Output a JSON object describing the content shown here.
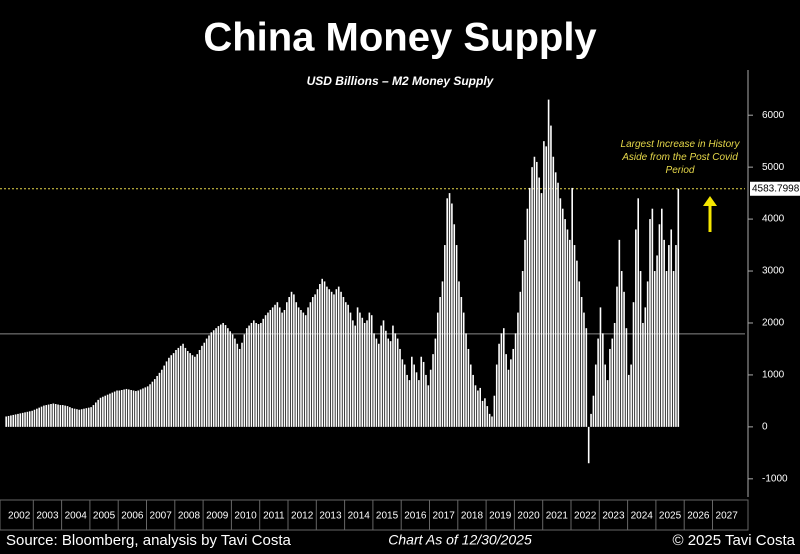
{
  "chart_data": {
    "type": "bar",
    "title": "China Money Supply",
    "subtitle": "USD Billions – M2 Money Supply",
    "annotation": "Largest Increase in History Aside from the Post Covid Period",
    "source": "Source: Bloomberg, analysis by Tavi Costa",
    "chart_date": "Chart As of 12/30/2025",
    "copyright": "© 2025 Tavi Costa",
    "year_labels": [
      "2002",
      "2003",
      "2004",
      "2005",
      "2006",
      "2007",
      "2008",
      "2009",
      "2010",
      "2011",
      "2012",
      "2013",
      "2014",
      "2015",
      "2016",
      "2017",
      "2018",
      "2019",
      "2020",
      "2021",
      "2022",
      "2023",
      "2024",
      "2025",
      "2026",
      "2027"
    ],
    "color": "#ffffff",
    "values": [
      200,
      210,
      220,
      230,
      240,
      250,
      260,
      270,
      280,
      290,
      300,
      310,
      330,
      350,
      370,
      390,
      410,
      420,
      430,
      440,
      450,
      440,
      430,
      420,
      420,
      410,
      400,
      380,
      360,
      350,
      340,
      330,
      340,
      350,
      360,
      370,
      380,
      420,
      470,
      520,
      560,
      580,
      600,
      620,
      640,
      660,
      680,
      700,
      700,
      710,
      720,
      730,
      720,
      710,
      700,
      690,
      700,
      720,
      740,
      760,
      780,
      820,
      870,
      920,
      980,
      1040,
      1100,
      1180,
      1260,
      1330,
      1380,
      1420,
      1480,
      1520,
      1560,
      1600,
      1520,
      1460,
      1420,
      1380,
      1350,
      1400,
      1480,
      1560,
      1620,
      1700,
      1760,
      1820,
      1860,
      1900,
      1940,
      1970,
      2000,
      1960,
      1900,
      1840,
      1780,
      1700,
      1600,
      1500,
      1620,
      1780,
      1900,
      1950,
      2000,
      2050,
      2000,
      1980,
      2000,
      2080,
      2150,
      2200,
      2250,
      2300,
      2350,
      2400,
      2300,
      2200,
      2250,
      2400,
      2500,
      2600,
      2550,
      2400,
      2300,
      2250,
      2200,
      2150,
      2300,
      2400,
      2500,
      2550,
      2650,
      2750,
      2850,
      2800,
      2700,
      2650,
      2600,
      2550,
      2650,
      2700,
      2600,
      2500,
      2400,
      2350,
      2200,
      2050,
      1950,
      2300,
      2200,
      2100,
      2000,
      2050,
      2200,
      2150,
      1800,
      1700,
      1600,
      1950,
      2050,
      1850,
      1700,
      1650,
      1950,
      1800,
      1700,
      1500,
      1300,
      1200,
      1000,
      900,
      1350,
      1200,
      1050,
      900,
      1350,
      1250,
      1000,
      800,
      1100,
      1400,
      1700,
      2200,
      2500,
      2800,
      3500,
      4400,
      4500,
      4300,
      3900,
      3500,
      2800,
      2500,
      2200,
      1800,
      1500,
      1200,
      1000,
      800,
      700,
      750,
      500,
      550,
      400,
      250,
      200,
      600,
      1200,
      1600,
      1800,
      1900,
      1400,
      1100,
      1300,
      1500,
      1800,
      2200,
      2600,
      3000,
      3600,
      4200,
      4600,
      5000,
      5200,
      5100,
      4800,
      4500,
      5500,
      5400,
      6300,
      5800,
      5200,
      4900,
      4700,
      4400,
      4200,
      4000,
      3800,
      3600,
      4600,
      3500,
      3200,
      2800,
      2500,
      2200,
      1900,
      -700,
      250,
      600,
      1200,
      1700,
      2300,
      1800,
      1200,
      900,
      1500,
      1700,
      2000,
      2700,
      3600,
      3000,
      2600,
      1900,
      1000,
      1200,
      2400,
      3800,
      4400,
      3000,
      2000,
      2300,
      2800,
      4000,
      4200,
      3000,
      3300,
      3900,
      4200,
      3600,
      3000,
      3500,
      3800,
      3000,
      3500,
      4583.7998
    ],
    "last_value_label": "4583.7998",
    "reference_lines": [
      {
        "value": 4583.7998,
        "color": "#e6d84a",
        "style": "dashed"
      },
      {
        "value": 1790,
        "color": "#888888",
        "style": "solid"
      }
    ],
    "ylim": [
      -1350,
      6870
    ],
    "yticks": [
      -1000,
      0,
      1000,
      2000,
      3000,
      4000,
      5000,
      6000
    ]
  }
}
